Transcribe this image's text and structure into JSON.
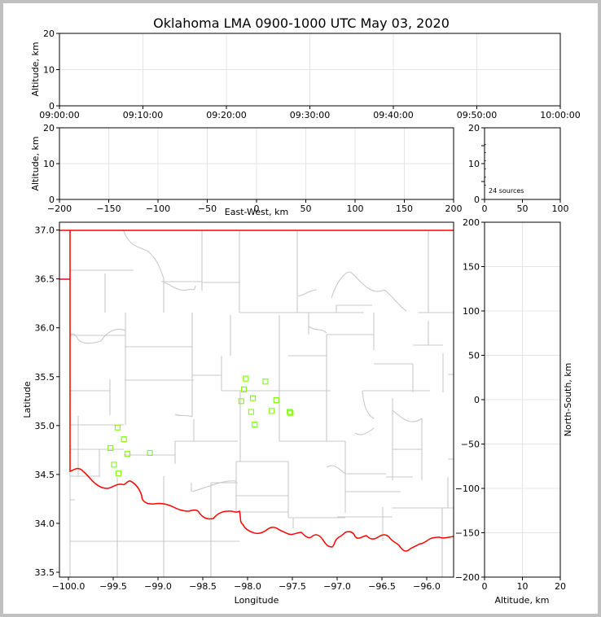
{
  "chart_data": [
    {
      "type": "scatter",
      "title": "Oklahoma LMA 0900-1000 UTC May 03, 2020",
      "xlabel": "",
      "ylabel": "Altitude, km",
      "xticks": [
        "09:00:00",
        "09:10:00",
        "09:20:00",
        "09:30:00",
        "09:40:00",
        "09:50:00",
        "10:00:00"
      ],
      "ylim": [
        0,
        20
      ],
      "yticks": [
        0,
        10,
        20
      ],
      "grid": true,
      "points": []
    },
    {
      "type": "scatter",
      "xlabel": "East-West, km",
      "ylabel": "Altitude, km",
      "xlim": [
        -200,
        200
      ],
      "xticks": [
        -200,
        -150,
        -100,
        -50,
        0,
        50,
        100,
        150,
        200
      ],
      "ylim": [
        0,
        20
      ],
      "yticks": [
        0,
        10,
        20
      ],
      "grid": true,
      "points": []
    },
    {
      "type": "scatter",
      "xlim": [
        0,
        100
      ],
      "xticks": [
        0,
        50,
        100
      ],
      "ylim": [
        0,
        20
      ],
      "yticks": [
        0,
        5,
        10,
        15,
        20
      ],
      "ytick_labels": [
        0,
        10,
        20
      ],
      "annotation": "24 sources",
      "points": []
    },
    {
      "type": "scatter",
      "xlabel": "Longitude",
      "ylabel": "Latitude",
      "xlim": [
        -100.1,
        -95.7
      ],
      "xticks": [
        -100.0,
        -99.5,
        -99.0,
        -98.5,
        -98.0,
        -97.5,
        -97.0,
        -96.5,
        -96.0
      ],
      "ylim": [
        33.45,
        37.08
      ],
      "yticks": [
        33.5,
        34.0,
        34.5,
        35.0,
        35.5,
        36.0,
        36.5,
        37.0
      ],
      "marker": "open-square",
      "marker_color": "#7cfc00",
      "border_color": "#ff0000",
      "county_color": "#c8c8c8",
      "points": [
        {
          "x": -98.02,
          "y": 35.48
        },
        {
          "x": -97.8,
          "y": 35.45
        },
        {
          "x": -98.04,
          "y": 35.37
        },
        {
          "x": -98.07,
          "y": 35.25
        },
        {
          "x": -97.94,
          "y": 35.28
        },
        {
          "x": -97.68,
          "y": 35.26
        },
        {
          "x": -97.96,
          "y": 35.14
        },
        {
          "x": -97.73,
          "y": 35.15
        },
        {
          "x": -97.53,
          "y": 35.14
        },
        {
          "x": -97.52,
          "y": 35.13
        },
        {
          "x": -97.92,
          "y": 35.01
        },
        {
          "x": -99.45,
          "y": 34.98
        },
        {
          "x": -99.38,
          "y": 34.86
        },
        {
          "x": -99.53,
          "y": 34.77
        },
        {
          "x": -99.34,
          "y": 34.71
        },
        {
          "x": -99.09,
          "y": 34.72
        },
        {
          "x": -99.49,
          "y": 34.6
        },
        {
          "x": -99.44,
          "y": 34.51
        }
      ]
    },
    {
      "type": "scatter",
      "xlabel": "Altitude, km",
      "ylabel": "North-South, km",
      "xlim": [
        0,
        20
      ],
      "xticks": [
        0,
        10,
        20
      ],
      "ylim": [
        -200,
        200
      ],
      "yticks": [
        -200,
        -150,
        -100,
        -50,
        0,
        50,
        100,
        150,
        200
      ],
      "grid": true,
      "points": []
    }
  ]
}
